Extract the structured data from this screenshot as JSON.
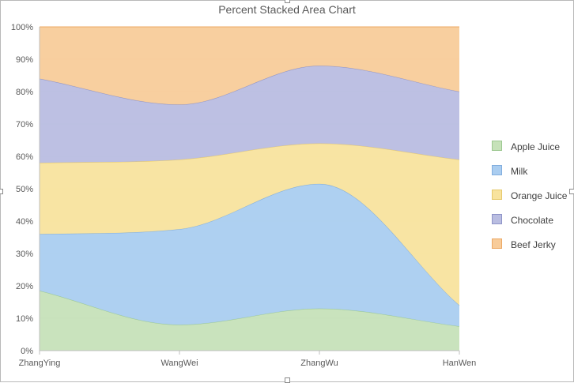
{
  "chart_data": {
    "type": "area",
    "stacking": "percent",
    "title": "Percent Stacked Area Chart",
    "categories": [
      "ZhangYing",
      "WangWei",
      "ZhangWu",
      "HanWen"
    ],
    "ylim": [
      0,
      100
    ],
    "ytick_labels": [
      "0%",
      "10%",
      "20%",
      "30%",
      "40%",
      "50%",
      "60%",
      "70%",
      "80%",
      "90%",
      "100%"
    ],
    "series": [
      {
        "name": "Apple Juice",
        "values": [
          18.5,
          8,
          13,
          7.5
        ],
        "color": "#c6e2b9",
        "stroke": "#9cc890"
      },
      {
        "name": "Milk",
        "values": [
          17.5,
          29.5,
          38.5,
          6.5
        ],
        "color": "#aacdf0",
        "stroke": "#82aede"
      },
      {
        "name": "Orange Juice",
        "values": [
          22,
          21.5,
          12.5,
          45
        ],
        "color": "#f8e39e",
        "stroke": "#e6c96c"
      },
      {
        "name": "Chocolate",
        "values": [
          26,
          17,
          24,
          21
        ],
        "color": "#b9bde1",
        "stroke": "#8f94c8"
      },
      {
        "name": "Beef Jerky",
        "values": [
          16,
          24,
          12,
          20
        ],
        "color": "#f8cc9a",
        "stroke": "#eca864"
      }
    ],
    "grid": true,
    "legend_position": "right",
    "smooth": true
  }
}
